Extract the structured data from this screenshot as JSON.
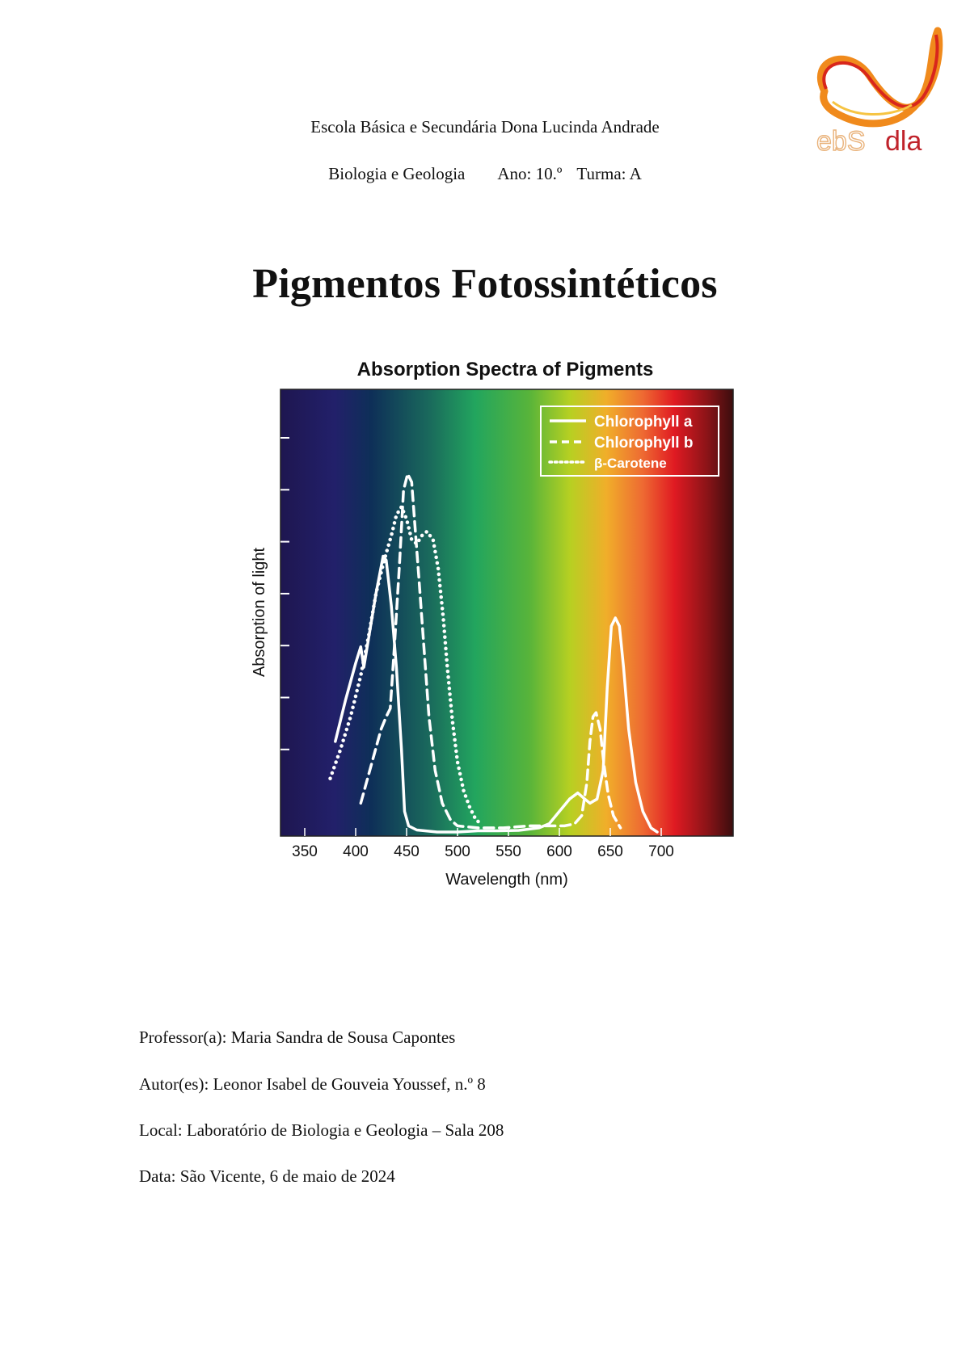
{
  "header": {
    "school": "Escola Básica e Secundária Dona Lucinda Andrade",
    "subject": "Biologia e Geologia",
    "year": "Ano: 10.º",
    "class": "Turma: A"
  },
  "logo": {
    "text_left": "ebS",
    "text_right": "dla",
    "colors": {
      "orange": "#f08a1c",
      "red": "#d8261c",
      "yellow": "#f6c443",
      "text_left": "#e9b27a",
      "text_right": "#c0232b"
    }
  },
  "document": {
    "title": "Pigmentos Fotossintéticos"
  },
  "info": {
    "teacher": "Professor(a): Maria Sandra de Sousa Capontes",
    "authors": "Autor(es): Leonor Isabel de Gouveia Youssef, n.º 8",
    "location": "Local: Laboratório de Biologia e Geologia – Sala 208",
    "date": "Data: São Vicente, 6 de maio de 2024"
  },
  "chart_data": {
    "type": "line",
    "title": "Absorption Spectra of Pigments",
    "xlabel": "Wavelength (nm)",
    "ylabel": "Absorption of light",
    "xlim": [
      325,
      730
    ],
    "ylim": [
      0,
      1
    ],
    "x_ticks": [
      350,
      400,
      450,
      500,
      550,
      600,
      650,
      700
    ],
    "y_ticks_count": 7,
    "y_tick_labels": [],
    "grid": false,
    "legend_position": "top-right",
    "background": "visible-spectrum gradient (violet → blue → green → yellow → orange → red → dark red)",
    "series": [
      {
        "name": "Chlorophyll a",
        "style": "solid",
        "points": [
          [
            380,
            0.22
          ],
          [
            390,
            0.32
          ],
          [
            400,
            0.41
          ],
          [
            405,
            0.45
          ],
          [
            408,
            0.4
          ],
          [
            412,
            0.46
          ],
          [
            420,
            0.58
          ],
          [
            427,
            0.67
          ],
          [
            430,
            0.66
          ],
          [
            435,
            0.55
          ],
          [
            440,
            0.4
          ],
          [
            445,
            0.2
          ],
          [
            448,
            0.05
          ],
          [
            452,
            0.015
          ],
          [
            460,
            0.005
          ],
          [
            480,
            0.0
          ],
          [
            500,
            0.0
          ],
          [
            520,
            0.003
          ],
          [
            540,
            0.003
          ],
          [
            560,
            0.004
          ],
          [
            580,
            0.01
          ],
          [
            590,
            0.02
          ],
          [
            600,
            0.05
          ],
          [
            610,
            0.08
          ],
          [
            618,
            0.095
          ],
          [
            625,
            0.08
          ],
          [
            630,
            0.07
          ],
          [
            637,
            0.08
          ],
          [
            643,
            0.15
          ],
          [
            647,
            0.35
          ],
          [
            651,
            0.5
          ],
          [
            655,
            0.52
          ],
          [
            659,
            0.5
          ],
          [
            663,
            0.4
          ],
          [
            668,
            0.25
          ],
          [
            675,
            0.12
          ],
          [
            682,
            0.05
          ],
          [
            690,
            0.01
          ],
          [
            696,
            0.0
          ]
        ]
      },
      {
        "name": "Chlorophyll b",
        "style": "dashed",
        "points": [
          [
            405,
            0.07
          ],
          [
            415,
            0.16
          ],
          [
            425,
            0.25
          ],
          [
            430,
            0.28
          ],
          [
            434,
            0.3
          ],
          [
            438,
            0.45
          ],
          [
            443,
            0.65
          ],
          [
            447,
            0.83
          ],
          [
            451,
            0.87
          ],
          [
            455,
            0.85
          ],
          [
            458,
            0.75
          ],
          [
            462,
            0.62
          ],
          [
            467,
            0.45
          ],
          [
            472,
            0.28
          ],
          [
            478,
            0.15
          ],
          [
            485,
            0.07
          ],
          [
            493,
            0.03
          ],
          [
            500,
            0.015
          ],
          [
            520,
            0.01
          ],
          [
            545,
            0.01
          ],
          [
            570,
            0.015
          ],
          [
            590,
            0.015
          ],
          [
            605,
            0.015
          ],
          [
            615,
            0.02
          ],
          [
            622,
            0.04
          ],
          [
            627,
            0.12
          ],
          [
            630,
            0.22
          ],
          [
            633,
            0.28
          ],
          [
            636,
            0.29
          ],
          [
            640,
            0.25
          ],
          [
            644,
            0.16
          ],
          [
            648,
            0.09
          ],
          [
            653,
            0.04
          ],
          [
            660,
            0.01
          ]
        ]
      },
      {
        "name": "β-Carotene",
        "style": "dotted",
        "points": [
          [
            375,
            0.13
          ],
          [
            385,
            0.2
          ],
          [
            395,
            0.28
          ],
          [
            405,
            0.38
          ],
          [
            413,
            0.48
          ],
          [
            420,
            0.58
          ],
          [
            428,
            0.66
          ],
          [
            435,
            0.72
          ],
          [
            440,
            0.77
          ],
          [
            445,
            0.79
          ],
          [
            450,
            0.76
          ],
          [
            455,
            0.71
          ],
          [
            460,
            0.7
          ],
          [
            465,
            0.72
          ],
          [
            470,
            0.73
          ],
          [
            476,
            0.71
          ],
          [
            481,
            0.64
          ],
          [
            486,
            0.52
          ],
          [
            490,
            0.4
          ],
          [
            495,
            0.27
          ],
          [
            500,
            0.17
          ],
          [
            506,
            0.1
          ],
          [
            512,
            0.06
          ],
          [
            518,
            0.03
          ],
          [
            523,
            0.02
          ]
        ]
      }
    ]
  }
}
